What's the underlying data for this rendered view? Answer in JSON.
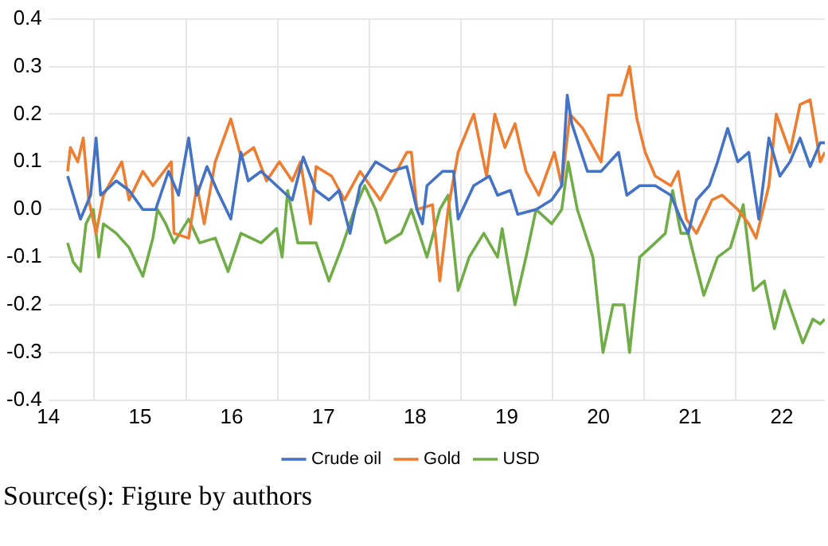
{
  "chart_data": {
    "type": "line",
    "annotations": [
      "Source(s): Figure by authors"
    ],
    "xlim": [
      14.0,
      22.47
    ],
    "xticks": [
      14,
      {
        "value": 14.5,
        "label": null
      },
      15,
      {
        "value": 15.5,
        "label": null
      },
      16,
      {
        "value": 16.5,
        "label": null
      },
      17,
      {
        "value": 17.5,
        "label": null
      },
      18,
      {
        "value": 18.5,
        "label": null
      },
      19,
      {
        "value": 19.5,
        "label": null
      },
      20,
      {
        "value": 20.5,
        "label": null
      },
      21,
      {
        "value": 21.5,
        "label": null
      },
      22
    ],
    "ylim": [
      -0.4,
      0.4
    ],
    "yticks": [
      {
        "value": -0.4,
        "label": "-0.4"
      },
      {
        "value": -0.3,
        "label": "-0.3"
      },
      {
        "value": -0.2,
        "label": "-0.2"
      },
      {
        "value": -0.1,
        "label": "-0.1"
      },
      {
        "value": 0,
        "label": "0.0"
      },
      {
        "value": 0.1,
        "label": "0.1"
      },
      {
        "value": 0.2,
        "label": "0.2"
      },
      {
        "value": 0.3,
        "label": "0.3"
      },
      {
        "value": 0.4,
        "label": "0.4"
      }
    ],
    "grid": true,
    "legend": "bottom",
    "marker": "none",
    "line_style": "solid",
    "series": [
      {
        "name": "Crude oil",
        "color": "#4472c4",
        "x": [
          14.21,
          14.35,
          14.46,
          14.52,
          14.57,
          14.74,
          14.88,
          15.03,
          15.17,
          15.31,
          15.42,
          15.53,
          15.62,
          15.73,
          15.84,
          15.99,
          16.1,
          16.18,
          16.32,
          16.49,
          16.66,
          16.78,
          16.92,
          17.06,
          17.17,
          17.29,
          17.4,
          17.57,
          17.74,
          17.91,
          18.02,
          18.08,
          18.13,
          18.3,
          18.42,
          18.47,
          18.64,
          18.81,
          18.9,
          19.04,
          19.12,
          19.32,
          19.49,
          19.6,
          19.66,
          19.71,
          19.88,
          20.03,
          20.22,
          20.31,
          20.45,
          20.62,
          20.79,
          20.9,
          20.98,
          21.07,
          21.21,
          21.3,
          21.41,
          21.52,
          21.64,
          21.75,
          21.86,
          21.98,
          22.09,
          22.2,
          22.31,
          22.42,
          22.47
        ],
        "values": [
          0.07,
          -0.02,
          0.03,
          0.15,
          0.03,
          0.06,
          0.04,
          0,
          0,
          0.08,
          0.03,
          0.15,
          0.03,
          0.09,
          0.04,
          -0.02,
          0.12,
          0.06,
          0.08,
          0.05,
          0.02,
          0.11,
          0.04,
          0.02,
          0.04,
          -0.05,
          0.05,
          0.1,
          0.08,
          0.09,
          0,
          -0.03,
          0.05,
          0.08,
          0.08,
          -0.02,
          0.05,
          0.07,
          0.03,
          0.04,
          -0.01,
          0,
          0.02,
          0.05,
          0.24,
          0.18,
          0.08,
          0.08,
          0.12,
          0.03,
          0.05,
          0.05,
          0.03,
          -0.02,
          -0.05,
          0.02,
          0.05,
          0.1,
          0.17,
          0.1,
          0.12,
          -0.02,
          0.15,
          0.07,
          0.1,
          0.15,
          0.09,
          0.14,
          0.14
        ]
      },
      {
        "name": "Gold",
        "color": "#ed7d31",
        "x": [
          14.21,
          14.24,
          14.32,
          14.38,
          14.44,
          14.52,
          14.6,
          14.8,
          14.88,
          15.03,
          15.14,
          15.34,
          15.37,
          15.53,
          15.62,
          15.7,
          15.82,
          15.99,
          16.1,
          16.24,
          16.38,
          16.52,
          16.66,
          16.75,
          16.86,
          16.92,
          17.09,
          17.23,
          17.4,
          17.62,
          17.74,
          17.91,
          17.96,
          18.02,
          18.19,
          18.27,
          18.36,
          18.47,
          18.64,
          18.78,
          18.87,
          18.98,
          19.09,
          19.21,
          19.35,
          19.52,
          19.6,
          19.69,
          19.83,
          20.03,
          20.11,
          20.25,
          20.34,
          20.42,
          20.51,
          20.62,
          20.79,
          20.87,
          20.96,
          21.07,
          21.24,
          21.35,
          21.52,
          21.64,
          21.72,
          21.86,
          21.94,
          22.09,
          22.2,
          22.31,
          22.42,
          22.47
        ],
        "values": [
          0.08,
          0.13,
          0.1,
          0.15,
          0.02,
          -0.05,
          0.03,
          0.1,
          0.02,
          0.08,
          0.05,
          0.1,
          -0.05,
          -0.06,
          0.05,
          -0.03,
          0.1,
          0.19,
          0.11,
          0.13,
          0.06,
          0.1,
          0.06,
          0.1,
          -0.03,
          0.09,
          0.07,
          0.02,
          0.08,
          0.02,
          0.06,
          0.12,
          0.12,
          0,
          0.01,
          -0.15,
          0,
          0.12,
          0.2,
          0.07,
          0.2,
          0.13,
          0.18,
          0.08,
          0.03,
          0.12,
          0.05,
          0.2,
          0.17,
          0.1,
          0.24,
          0.24,
          0.3,
          0.19,
          0.12,
          0.07,
          0.05,
          0.08,
          -0.02,
          -0.05,
          0.02,
          0.03,
          0,
          -0.03,
          -0.06,
          0.05,
          0.2,
          0.12,
          0.22,
          0.23,
          0.1,
          0.12
        ]
      },
      {
        "name": "USD",
        "color": "#70ad47",
        "x": [
          14.21,
          14.27,
          14.35,
          14.41,
          14.49,
          14.55,
          14.6,
          14.74,
          14.88,
          15.03,
          15.14,
          15.19,
          15.28,
          15.37,
          15.53,
          15.65,
          15.82,
          15.96,
          16.1,
          16.32,
          16.49,
          16.55,
          16.61,
          16.72,
          16.92,
          17.06,
          17.2,
          17.34,
          17.45,
          17.57,
          17.68,
          17.85,
          17.96,
          18.13,
          18.27,
          18.36,
          18.47,
          18.59,
          18.75,
          18.9,
          18.95,
          19.09,
          19.21,
          19.32,
          19.49,
          19.6,
          19.67,
          19.77,
          19.94,
          20.05,
          20.16,
          20.28,
          20.34,
          20.45,
          20.62,
          20.73,
          20.81,
          20.9,
          20.98,
          21.15,
          21.3,
          21.44,
          21.58,
          21.69,
          21.81,
          21.92,
          22.03,
          22.23,
          22.34,
          22.42,
          22.47
        ],
        "values": [
          -0.07,
          -0.11,
          -0.13,
          -0.03,
          0,
          -0.1,
          -0.03,
          -0.05,
          -0.08,
          -0.14,
          -0.06,
          0,
          -0.03,
          -0.07,
          -0.02,
          -0.07,
          -0.06,
          -0.13,
          -0.05,
          -0.07,
          -0.04,
          -0.1,
          0.04,
          -0.07,
          -0.07,
          -0.15,
          -0.08,
          0,
          0.05,
          0,
          -0.07,
          -0.05,
          0,
          -0.1,
          0,
          0.03,
          -0.17,
          -0.1,
          -0.05,
          -0.1,
          -0.04,
          -0.2,
          -0.1,
          0,
          -0.03,
          0,
          0.1,
          0,
          -0.1,
          -0.3,
          -0.2,
          -0.2,
          -0.3,
          -0.1,
          -0.07,
          -0.05,
          0.04,
          -0.05,
          -0.05,
          -0.18,
          -0.1,
          -0.08,
          0.01,
          -0.17,
          -0.15,
          -0.25,
          -0.17,
          -0.28,
          -0.23,
          -0.24,
          -0.23
        ]
      }
    ]
  }
}
